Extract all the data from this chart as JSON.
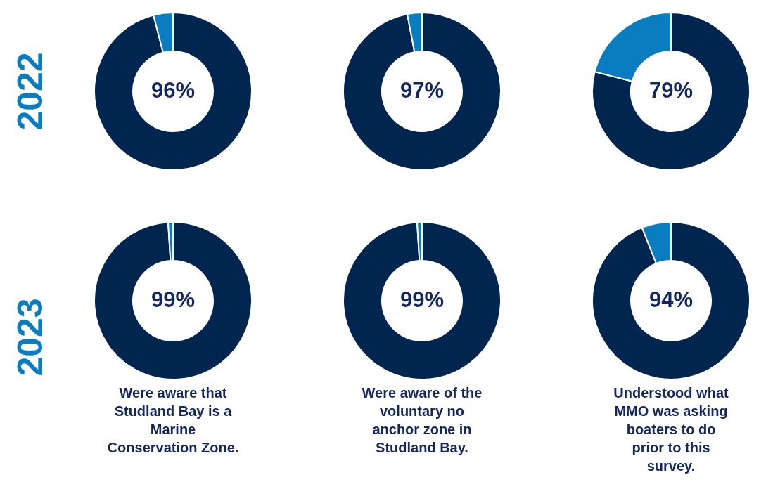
{
  "chart_data": [
    {
      "type": "donut",
      "ylabel": "2022",
      "categories": [
        null,
        null
      ],
      "values": [
        96,
        4
      ],
      "colors": [
        "#00264f",
        "#0a7dc0"
      ],
      "value_labels": [
        "96%",
        null
      ]
    },
    {
      "type": "donut",
      "categories": [
        null,
        null
      ],
      "values": [
        97,
        3
      ],
      "colors": [
        "#00264f",
        "#0a7dc0"
      ],
      "value_labels": [
        "97%",
        null
      ]
    },
    {
      "type": "donut",
      "categories": [
        null,
        null
      ],
      "values": [
        79,
        21
      ],
      "colors": [
        "#00264f",
        "#0a7dc0"
      ],
      "value_labels": [
        "79%",
        null
      ]
    },
    {
      "type": "donut",
      "ylabel": "2023",
      "xlabel": "Were aware that Studland Bay is a Marine Conservation Zone.",
      "categories": [
        null,
        null
      ],
      "values": [
        99,
        1
      ],
      "colors": [
        "#00264f",
        "#0a7dc0"
      ],
      "value_labels": [
        "99%",
        null
      ]
    },
    {
      "type": "donut",
      "xlabel": "Were aware of the voluntary no anchor zone in Studland Bay.",
      "categories": [
        null,
        null
      ],
      "values": [
        99,
        1
      ],
      "colors": [
        "#00264f",
        "#0a7dc0"
      ],
      "value_labels": [
        "99%",
        null
      ]
    },
    {
      "type": "donut",
      "xlabel": "Understood what MMO was asking boaters to do prior to this survey.",
      "categories": [
        null,
        null
      ],
      "values": [
        94,
        6
      ],
      "colors": [
        "#00264f",
        "#0a7dc0"
      ],
      "value_labels": [
        "94%",
        null
      ]
    }
  ]
}
